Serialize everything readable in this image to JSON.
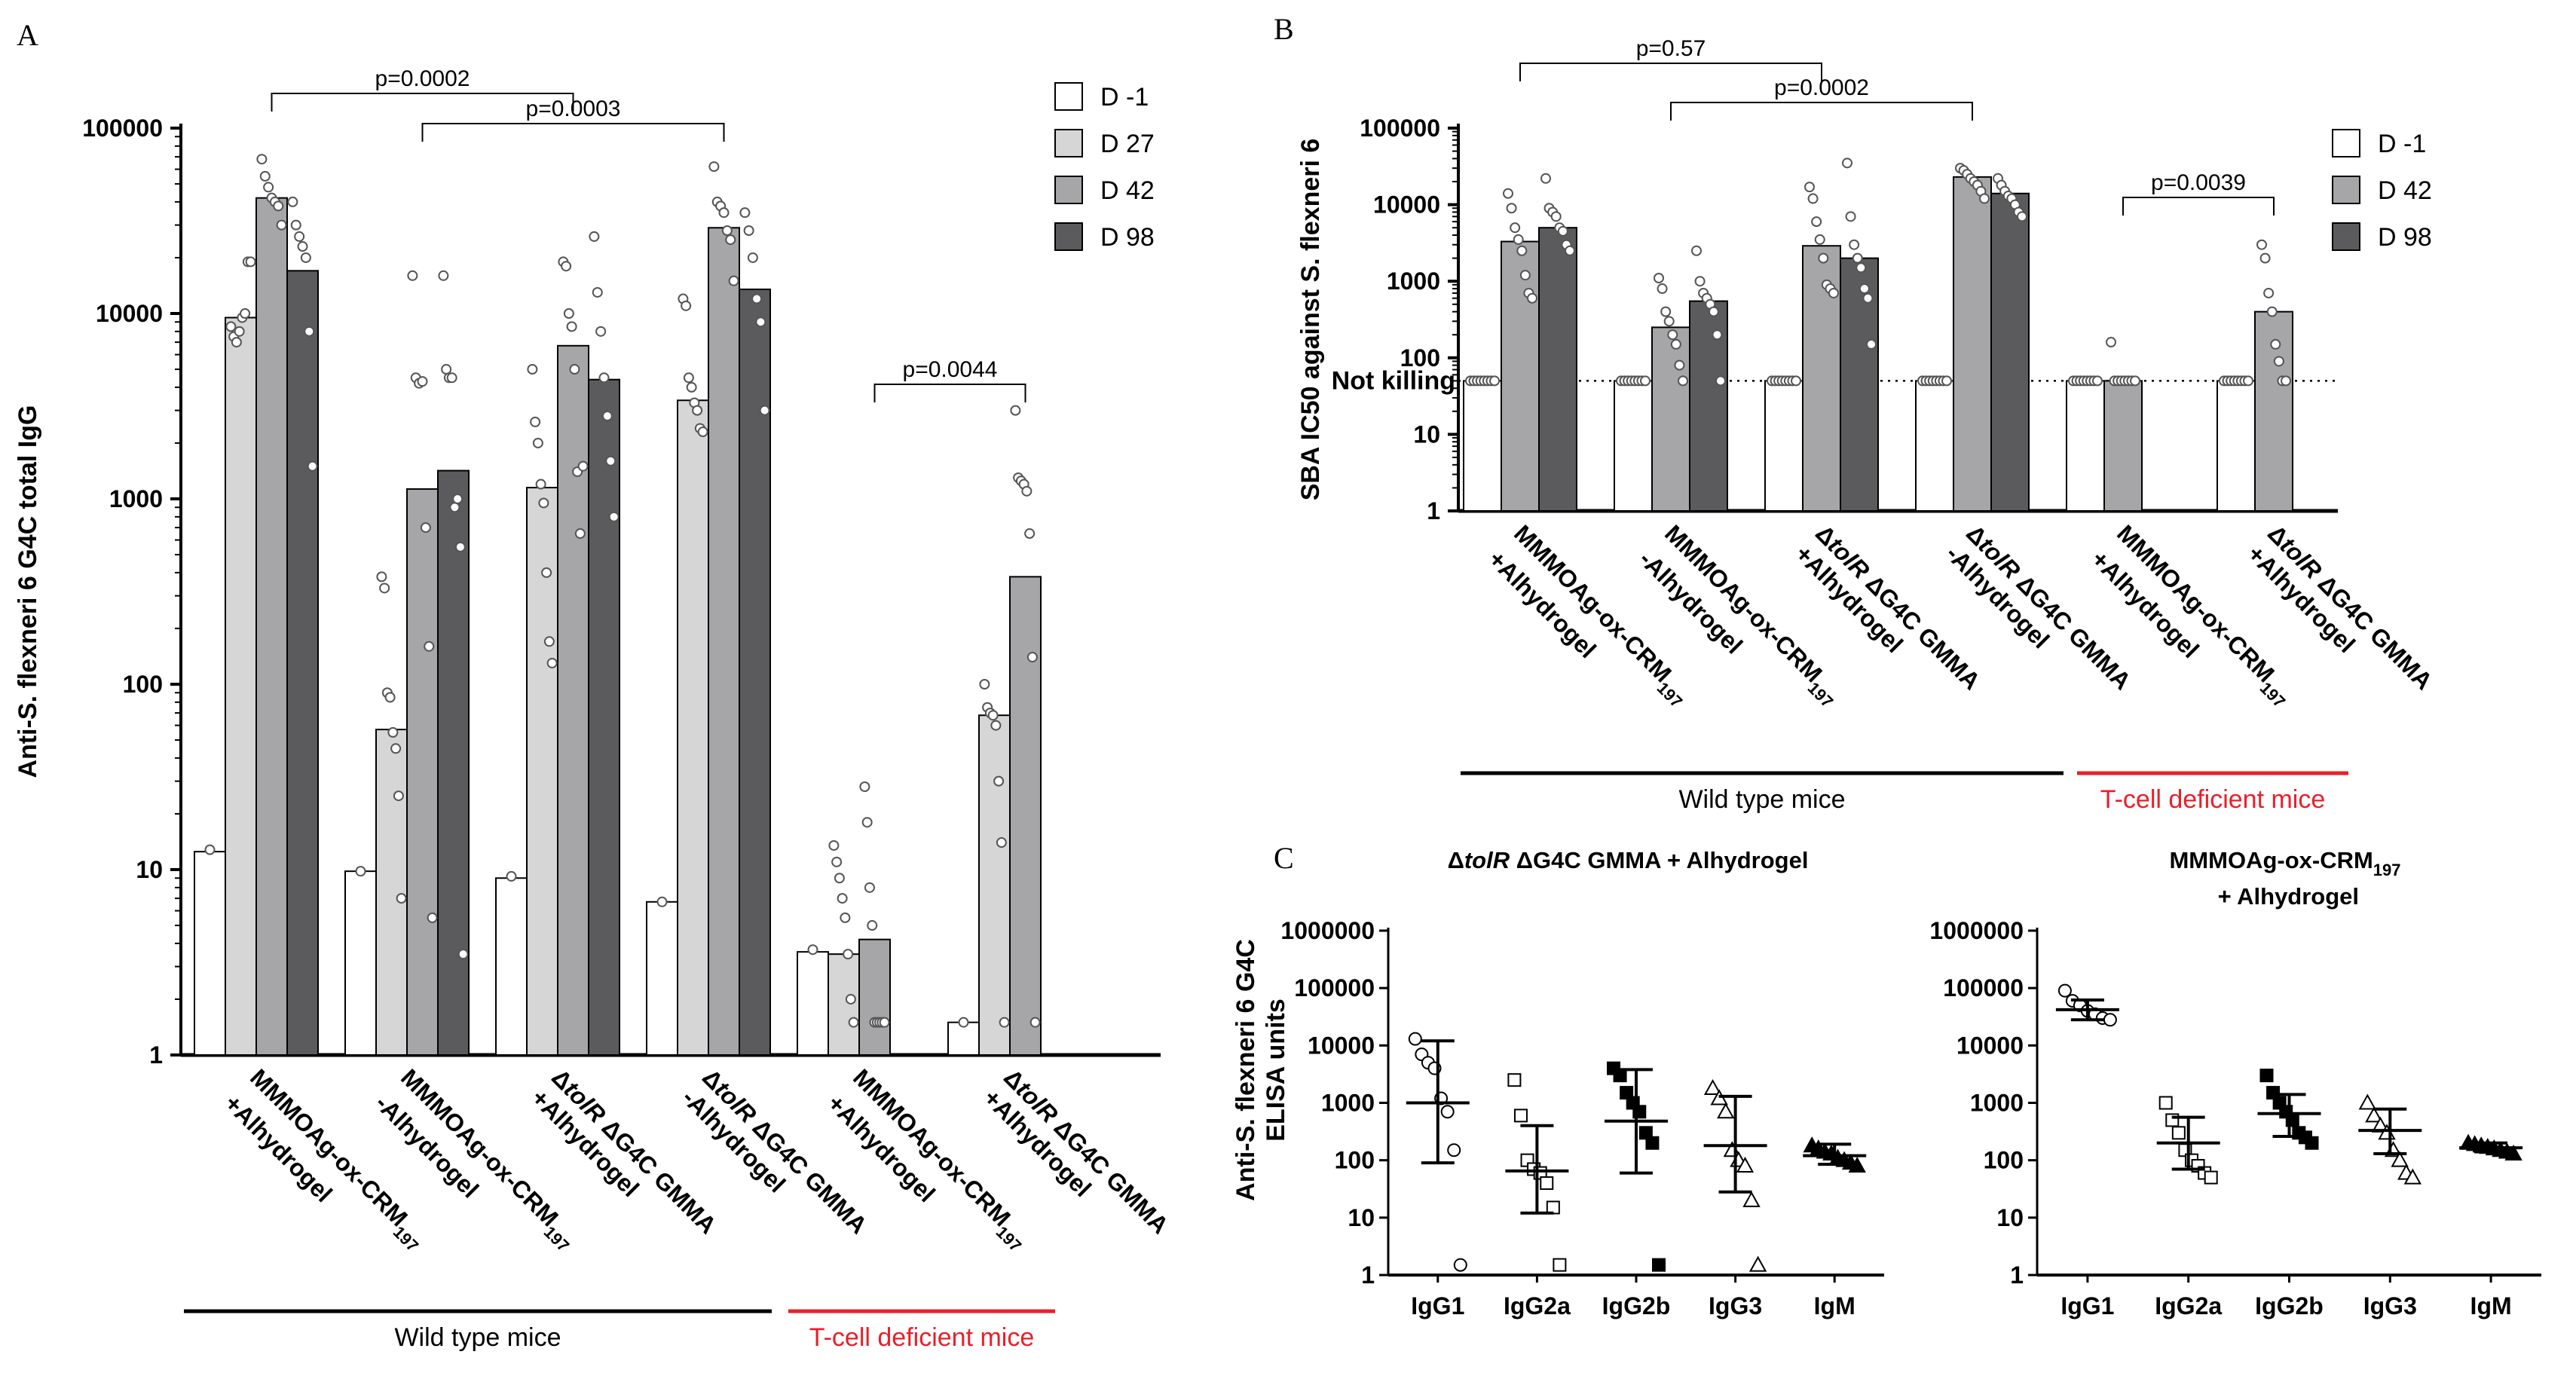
{
  "panels": [
    {
      "letter": "A",
      "chart_data": {
        "type": "bar",
        "ylabel": "Anti-S. flexneri 6 G4C total IgG",
        "yscale": "log",
        "ylim": [
          1,
          100000
        ],
        "yticks": [
          "1",
          "10",
          "100",
          "1000",
          "10000",
          "100000"
        ],
        "timepoints": [
          "D -1",
          "D 27",
          "D 42",
          "D 98"
        ],
        "legend_position": "top-right",
        "colors": [
          "#ffffff",
          "#d6d6d6",
          "#a6a6a8",
          "#5b5b5d"
        ],
        "categories": [
          "MMMOAg-ox-CRM197 +Alhydrogel",
          "MMMOAg-ox-CRM197 -Alhydrogel",
          "ΔtolR ΔG4C GMMA +Alhydrogel",
          "ΔtolR ΔG4C GMMA -Alhydrogel",
          "MMMOAg-ox-CRM197 +Alhydrogel",
          "ΔtolR ΔG4C GMMA +Alhydrogel"
        ],
        "category_lines": [
          [
            {
              "t": "MMMOAg-ox-CRM",
              "sub": "197"
            },
            {
              "t": "+Alhydrogel"
            }
          ],
          [
            {
              "t": "MMMOAg-ox-CRM",
              "sub": "197"
            },
            {
              "t": "-Alhydrogel"
            }
          ],
          [
            {
              "t": "Δ"
            },
            {
              "t": "tolR",
              "it": true
            },
            {
              "t": " ΔG4C GMMA"
            },
            {
              "br": true
            },
            {
              "t": "+Alhydrogel"
            }
          ],
          [
            {
              "t": "Δ"
            },
            {
              "t": "tolR",
              "it": true
            },
            {
              "t": " ΔG4C GMMA"
            },
            {
              "br": true
            },
            {
              "t": "-Alhydrogel"
            }
          ],
          [
            {
              "t": "MMMOAg-ox-CRM",
              "sub": "197"
            },
            {
              "t": "+Alhydrogel"
            }
          ],
          [
            {
              "t": "Δ"
            },
            {
              "t": "tolR",
              "it": true
            },
            {
              "t": " ΔG4C GMMA"
            },
            {
              "br": true
            },
            {
              "t": "+Alhydrogel"
            }
          ]
        ],
        "series": [
          {
            "name": "D -1",
            "values": [
              12.5,
              9.8,
              9.0,
              6.7,
              3.6,
              1.5
            ]
          },
          {
            "name": "D 27",
            "values": [
              9500,
              57,
              1150,
              3400,
              3.5,
              68
            ]
          },
          {
            "name": "D 42",
            "values": [
              42000,
              1130,
              6700,
              29000,
              4.2,
              380
            ]
          },
          {
            "name": "D 98",
            "values": [
              17000,
              1420,
              4400,
              13500,
              null,
              null
            ]
          }
        ],
        "points": [
          [
            [
              12.8
            ],
            [
              9.8
            ],
            [
              9.2
            ],
            [
              6.7
            ],
            [
              3.7
            ],
            [
              1.5
            ]
          ],
          [
            [
              8500,
              7500,
              7000,
              8000,
              9500,
              10000,
              19000,
              19000
            ],
            [
              380,
              330,
              90,
              85,
              55,
              45,
              25,
              7
            ],
            [
              5000,
              2600,
              2000,
              1200,
              950,
              400,
              170,
              130
            ],
            [
              12000,
              11000,
              4500,
              4000,
              3300,
              3000,
              2400,
              2300
            ],
            [
              13.5,
              11,
              9,
              7,
              5.5,
              3.5,
              2,
              1.5
            ],
            [
              100,
              75,
              70,
              68,
              60,
              30,
              14,
              1.5
            ]
          ],
          [
            [
              68000,
              55000,
              48000,
              42000,
              40000,
              38000,
              30000
            ],
            [
              16000,
              4500,
              4200,
              4300,
              700,
              160,
              5.5
            ],
            [
              19000,
              18000,
              10000,
              8500,
              5000,
              1400,
              650,
              1500
            ],
            [
              62000,
              40000,
              38000,
              35000,
              28000,
              25000,
              15000
            ],
            [
              28,
              18,
              8,
              5,
              1.5,
              1.5,
              1.5,
              1.5,
              1.5
            ],
            [
              3000,
              1300,
              1250,
              1200,
              1100,
              650,
              140,
              1.5
            ]
          ],
          [
            [
              40000,
              30000,
              26000,
              23000,
              20000,
              8000,
              1500
            ],
            [
              16000,
              5000,
              4500,
              4500,
              900,
              1000,
              550,
              3.5
            ],
            [
              26000,
              13000,
              8000,
              4500,
              2800,
              1600,
              800
            ],
            [
              35000,
              28000,
              20000,
              12000,
              9000,
              3000
            ],
            [],
            []
          ]
        ],
        "pvalues": [
          {
            "label": "p=0.0002",
            "from_group": 0,
            "from_series": 2,
            "to_group": 2,
            "to_series": 2
          },
          {
            "label": "p=0.0003",
            "from_group": 1,
            "from_series": 2,
            "to_group": 3,
            "to_series": 2
          },
          {
            "label": "p=0.0044",
            "from_group": 4,
            "from_series": 2,
            "to_group": 5,
            "to_series": 2
          }
        ],
        "group_labels": [
          {
            "text": "Wild type mice",
            "from": 0,
            "to": 3,
            "color": "#000000"
          },
          {
            "text": "T-cell deficient mice",
            "from": 4,
            "to": 5,
            "color": "#e8202a"
          }
        ]
      }
    },
    {
      "letter": "B",
      "chart_data": {
        "type": "bar",
        "ylabel": "SBA IC50 against S. flexneri 6",
        "yscale": "log",
        "ylim": [
          1,
          100000
        ],
        "yticks": [
          "1",
          "10",
          "100",
          "1000",
          "10000",
          "100000"
        ],
        "reference_line": {
          "value": 50,
          "label": "Not killing"
        },
        "timepoints": [
          "D -1",
          "D 42",
          "D 98"
        ],
        "legend_position": "top-right",
        "colors": [
          "#ffffff",
          "#a6a6a8",
          "#5b5b5d"
        ],
        "categories": [
          "MMMOAg-ox-CRM197 +Alhydrogel",
          "MMMOAg-ox-CRM197 -Alhydrogel",
          "ΔtolR ΔG4C GMMA +Alhydrogel",
          "ΔtolR ΔG4C GMMA -Alhydrogel",
          "MMMOAg-ox-CRM197 +Alhydrogel",
          "ΔtolR ΔG4C GMMA +Alhydrogel"
        ],
        "category_lines": [
          [
            {
              "t": "MMMOAg-ox-CRM",
              "sub": "197"
            },
            {
              "t": "+Alhydrogel"
            }
          ],
          [
            {
              "t": "MMMOAg-ox-CRM",
              "sub": "197"
            },
            {
              "t": "-Alhydrogel"
            }
          ],
          [
            {
              "t": "Δ"
            },
            {
              "t": "tolR",
              "it": true
            },
            {
              "t": " ΔG4C GMMA"
            },
            {
              "br": true
            },
            {
              "t": "+Alhydrogel"
            }
          ],
          [
            {
              "t": "Δ"
            },
            {
              "t": "tolR",
              "it": true
            },
            {
              "t": " ΔG4C GMMA"
            },
            {
              "br": true
            },
            {
              "t": "-Alhydrogel"
            }
          ],
          [
            {
              "t": "MMMOAg-ox-CRM",
              "sub": "197"
            },
            {
              "t": "+Alhydrogel"
            }
          ],
          [
            {
              "t": "Δ"
            },
            {
              "t": "tolR",
              "it": true
            },
            {
              "t": " ΔG4C GMMA"
            },
            {
              "br": true
            },
            {
              "t": "+Alhydrogel"
            }
          ]
        ],
        "series": [
          {
            "name": "D -1",
            "values": [
              50,
              50,
              50,
              50,
              50,
              50
            ]
          },
          {
            "name": "D 42",
            "values": [
              3300,
              250,
              2900,
              23000,
              50,
              400
            ]
          },
          {
            "name": "D 98",
            "values": [
              5000,
              550,
              2000,
              14000,
              null,
              null
            ]
          }
        ],
        "points": [
          [
            [
              50,
              50,
              50,
              50,
              50,
              50,
              50,
              50
            ],
            [
              50,
              50,
              50,
              50,
              50,
              50,
              50,
              50
            ],
            [
              50,
              50,
              50,
              50,
              50,
              50,
              50,
              50
            ],
            [
              50,
              50,
              50,
              50,
              50,
              50,
              50,
              50
            ],
            [
              50,
              50,
              50,
              50,
              50,
              50,
              50,
              50
            ],
            [
              50,
              50,
              50,
              50,
              50,
              50,
              50,
              50
            ]
          ],
          [
            [
              14000,
              9000,
              5000,
              3500,
              2500,
              1200,
              700,
              600
            ],
            [
              1100,
              800,
              400,
              300,
              200,
              150,
              80,
              50
            ],
            [
              17000,
              12000,
              6000,
              3500,
              2000,
              900,
              800,
              700
            ],
            [
              30000,
              28000,
              25000,
              22000,
              20000,
              18000,
              15000,
              12000
            ],
            [
              160,
              50,
              50,
              50,
              50,
              50,
              50,
              50
            ],
            [
              3000,
              2000,
              700,
              400,
              150,
              90,
              50,
              50
            ]
          ],
          [
            [
              22000,
              9000,
              8000,
              7000,
              5000,
              4500,
              3000,
              2500
            ],
            [
              2500,
              1000,
              700,
              600,
              500,
              400,
              200,
              50
            ],
            [
              35000,
              7000,
              3000,
              2000,
              1500,
              800,
              600,
              150
            ],
            [
              22000,
              18000,
              15000,
              13000,
              12000,
              10000,
              8000,
              7000
            ],
            [],
            []
          ]
        ],
        "pvalues": [
          {
            "label": "p=0.57",
            "from_group": 0,
            "from_series": 1,
            "to_group": 2,
            "to_series": 1
          },
          {
            "label": "p=0.0002",
            "from_group": 1,
            "from_series": 1,
            "to_group": 3,
            "to_series": 1
          },
          {
            "label": "p=0.0039",
            "from_group": 4,
            "from_series": 1,
            "to_group": 5,
            "to_series": 1
          }
        ],
        "group_labels": [
          {
            "text": "Wild type mice",
            "from": 0,
            "to": 3,
            "color": "#000000"
          },
          {
            "text": "T-cell deficient mice",
            "from": 4,
            "to": 5,
            "color": "#e8202a"
          }
        ]
      }
    },
    {
      "letter": "C",
      "ylabel": "Anti-S. flexneri 6 G4C ELISA units",
      "subpanels": [
        {
          "title_parts": [
            {
              "t": "Δ"
            },
            {
              "t": "tolR",
              "it": true
            },
            {
              "t": " ΔG4C GMMA + Alhydrogel"
            }
          ],
          "chart_data": {
            "type": "scatter",
            "yscale": "log",
            "ylim": [
              1,
              1000000
            ],
            "yticks": [
              "1",
              "10",
              "100",
              "1000",
              "10000",
              "100000",
              "1000000"
            ],
            "categories": [
              "IgG1",
              "IgG2a",
              "IgG2b",
              "IgG3",
              "IgM"
            ],
            "markers": [
              "open-circle",
              "open-square",
              "filled-square",
              "open-triangle",
              "filled-triangle"
            ],
            "center": [
              1000,
              65,
              480,
              180,
              120
            ],
            "lower": [
              90,
              12,
              60,
              28,
              85
            ],
            "upper": [
              12000,
              400,
              3800,
              1300,
              190
            ],
            "points": [
              [
                13000,
                7000,
                5000,
                4000,
                1200,
                700,
                150,
                1.5
              ],
              [
                2500,
                600,
                100,
                70,
                60,
                40,
                15,
                1.5
              ],
              [
                4000,
                3000,
                1500,
                1000,
                700,
                300,
                200,
                1.5
              ],
              [
                1800,
                1200,
                700,
                150,
                100,
                80,
                20,
                1.5
              ],
              [
                180,
                160,
                140,
                130,
                110,
                100,
                90,
                80
              ]
            ]
          }
        },
        {
          "title_parts": [
            {
              "t": "MMMOAg-ox-CRM",
              "sub": "197"
            },
            {
              "t": " + Alhydrogel"
            }
          ],
          "chart_data": {
            "type": "scatter",
            "yscale": "log",
            "ylim": [
              1,
              1000000
            ],
            "yticks": [
              "1",
              "10",
              "100",
              "1000",
              "10000",
              "100000",
              "1000000"
            ],
            "categories": [
              "IgG1",
              "IgG2a",
              "IgG2b",
              "IgG3",
              "IgM"
            ],
            "markers": [
              "open-circle",
              "open-square",
              "filled-square",
              "open-triangle",
              "filled-triangle"
            ],
            "center": [
              42000,
              200,
              650,
              330,
              165
            ],
            "lower": [
              28000,
              70,
              260,
              130,
              140
            ],
            "upper": [
              62000,
              560,
              1400,
              780,
              200
            ],
            "points": [
              [
                90000,
                60000,
                50000,
                40000,
                35000,
                30000,
                28000
              ],
              [
                1000,
                500,
                300,
                150,
                100,
                80,
                60,
                50
              ],
              [
                3000,
                1500,
                1000,
                700,
                500,
                300,
                250,
                200
              ],
              [
                1000,
                600,
                400,
                300,
                150,
                100,
                60,
                50
              ],
              [
                200,
                190,
                180,
                170,
                160,
                150,
                140,
                130
              ]
            ]
          }
        }
      ]
    }
  ]
}
